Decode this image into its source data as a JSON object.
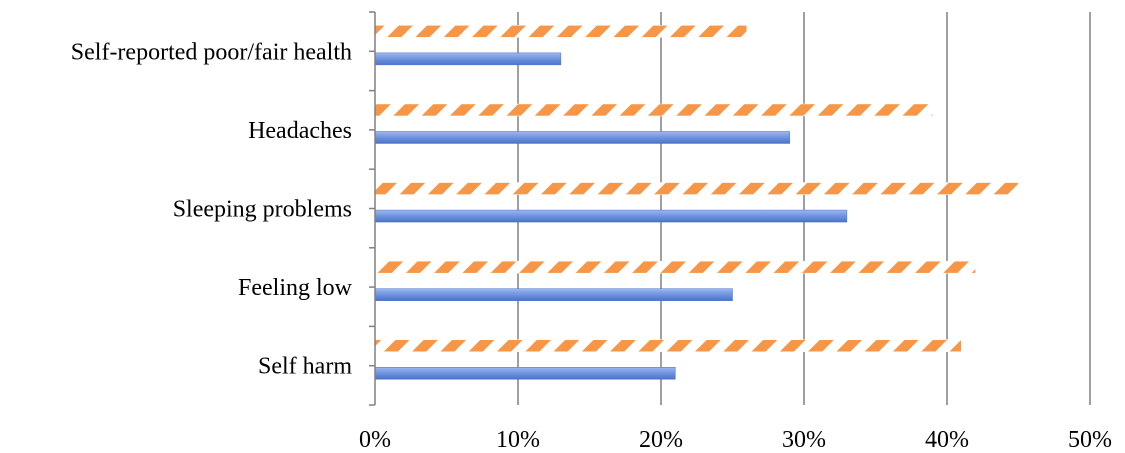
{
  "chart_data": {
    "type": "bar",
    "orientation": "horizontal",
    "categories": [
      "Self harm",
      "Feeling low",
      "Sleeping problems",
      "Headaches",
      "Self-reported poor/fair health"
    ],
    "series": [
      {
        "values": [
          21,
          25,
          33,
          29,
          13
        ],
        "color": "#6a8fdc",
        "pattern": "solid-gradient"
      },
      {
        "values": [
          41,
          42,
          45,
          39,
          26
        ],
        "color": "#f79646",
        "pattern": "diagonal-stripes"
      }
    ],
    "xlim": [
      0,
      50
    ],
    "xticks": [
      "0%",
      "10%",
      "20%",
      "30%",
      "40%",
      "50%"
    ],
    "grid": true,
    "legend": "none"
  }
}
